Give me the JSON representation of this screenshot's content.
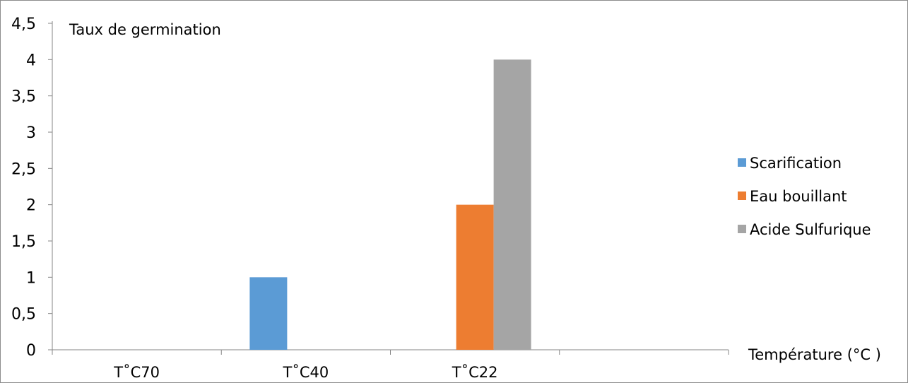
{
  "chart_data": {
    "type": "bar",
    "title": "",
    "ylabel": "Taux de germination",
    "xlabel": "Température (°C )",
    "categories": [
      "T˚C70",
      "T˚C40",
      "T˚C22",
      ""
    ],
    "series": [
      {
        "name": "Scarification",
        "color": "#5b9bd5",
        "values": [
          0,
          1,
          0,
          0
        ]
      },
      {
        "name": "Eau bouillant",
        "color": "#ed7d31",
        "values": [
          0,
          0,
          2,
          0
        ]
      },
      {
        "name": "Acide Sulfurique",
        "color": "#a5a5a5",
        "values": [
          0,
          0,
          4,
          0
        ]
      }
    ],
    "ylim": [
      0,
      4.5
    ],
    "yticks": [
      "0",
      "0,5",
      "1",
      "1,5",
      "2",
      "2,5",
      "3",
      "3,5",
      "4",
      "4,5"
    ],
    "grid": false,
    "legend_position": "right",
    "axis_color": "#868686"
  }
}
